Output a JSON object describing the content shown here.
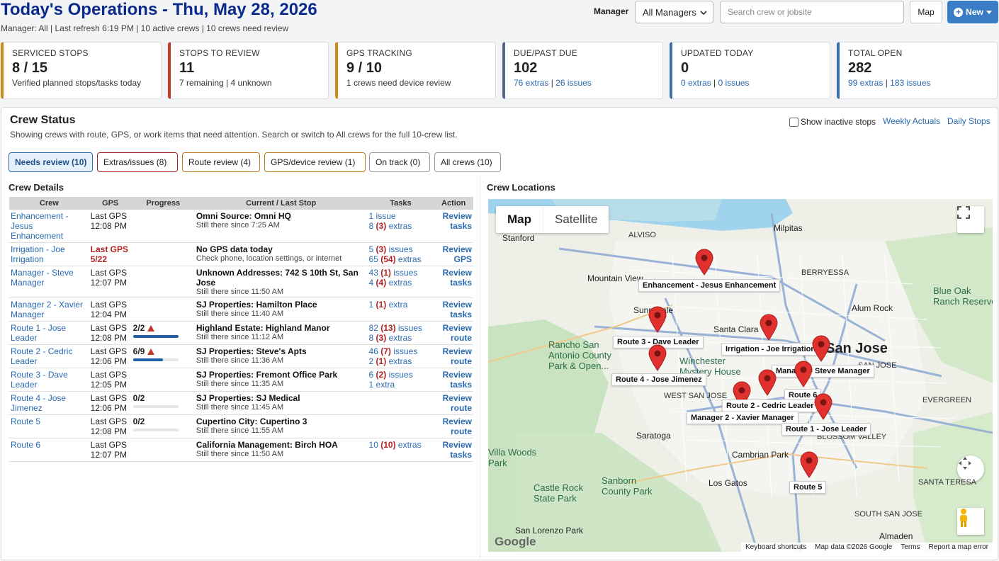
{
  "header": {
    "title": "Today's Operations - Thu, May 28, 2026",
    "subtitle": "Manager: All | Last refresh 6:19 PM | 10 active crews | 10 crews need review",
    "manager_label": "Manager",
    "manager_value": "All Managers",
    "search_placeholder": "Search crew or jobsite",
    "map_button": "Map",
    "new_button": "New"
  },
  "cards": [
    {
      "title": "SERVICED STOPS",
      "value": "8 / 15",
      "sub": "Verified planned stops/tasks today",
      "link1": "",
      "sep": "",
      "link2": "",
      "color": "#d08a1a"
    },
    {
      "title": "STOPS TO REVIEW",
      "value": "11",
      "sub": "7 remaining | 4 unknown",
      "link1": "",
      "sep": "",
      "link2": "",
      "color": "#c0392b"
    },
    {
      "title": "GPS TRACKING",
      "value": "9 / 10",
      "sub": "1 crews need device review",
      "link1": "",
      "sep": "",
      "link2": "",
      "color": "#d08a1a"
    },
    {
      "title": "DUE/PAST DUE",
      "value": "102",
      "sub": "",
      "link1": "76 extras",
      "sep": " | ",
      "link2": "26 issues",
      "color": "#556b8a"
    },
    {
      "title": "UPDATED TODAY",
      "value": "0",
      "sub": "",
      "link1": "0 extras",
      "sep": " | ",
      "link2": "0 issues",
      "color": "#3b6fb0"
    },
    {
      "title": "TOTAL OPEN",
      "value": "282",
      "sub": "",
      "link1": "99 extras",
      "sep": " | ",
      "link2": "183 issues",
      "color": "#3b6fb0"
    }
  ],
  "crew_status": {
    "title": "Crew Status",
    "subtitle": "Showing crews with route, GPS, or work items that need attention. Search or switch to All crews for the full 10-crew list.",
    "show_inactive": "Show inactive stops",
    "weekly_actuals": "Weekly Actuals",
    "daily_stops": "Daily Stops",
    "filters": [
      {
        "label": "Needs review (10)",
        "border": "#2a6ab0"
      },
      {
        "label": "Extras/issues (8)",
        "border": "#b22222"
      },
      {
        "label": "Route review (4)",
        "border": "#c07a1a"
      },
      {
        "label": "GPS/device review (1)",
        "border": "#c07a1a"
      },
      {
        "label": "On track (0)",
        "border": "#999"
      },
      {
        "label": "All crews (10)",
        "border": "#999"
      }
    ]
  },
  "crew_details": {
    "title": "Crew Details",
    "columns": [
      "Crew",
      "GPS",
      "Progress",
      "Current / Last Stop",
      "Tasks",
      "Action"
    ],
    "rows": [
      {
        "crew": "Enhancement - Jesus Enhancement",
        "gps1": "Last GPS",
        "gps2": "12:08 PM",
        "gps_warn": false,
        "progress": "",
        "prog_pct": null,
        "warn": false,
        "stop": "Omni Source: Omni HQ",
        "note": "Still there since 7:25 AM",
        "t1a": "1 issue",
        "t1n": "",
        "t1b": "",
        "t2a": "8",
        "t2n": "(3)",
        "t2b": "extras",
        "act1": "Review",
        "act2": "tasks"
      },
      {
        "crew": "Irrigation - Joe Irrigation",
        "gps1": "Last GPS",
        "gps2": "5/22",
        "gps_warn": true,
        "progress": "",
        "prog_pct": null,
        "warn": false,
        "stop": "No GPS data today",
        "note": "Check phone, location settings, or internet",
        "t1a": "5",
        "t1n": "(3)",
        "t1b": "issues",
        "t2a": "65",
        "t2n": "(54)",
        "t2b": "extras",
        "act1": "Review",
        "act2": "GPS"
      },
      {
        "crew": "Manager - Steve Manager",
        "gps1": "Last GPS",
        "gps2": "12:07 PM",
        "gps_warn": false,
        "progress": "",
        "prog_pct": null,
        "warn": false,
        "stop": "Unknown Addresses: 742 S 10th St, San Jose",
        "note": "Still there since 11:50 AM",
        "t1a": "43",
        "t1n": "(1)",
        "t1b": "issues",
        "t2a": "4",
        "t2n": "(4)",
        "t2b": "extras",
        "act1": "Review",
        "act2": "tasks"
      },
      {
        "crew": "Manager 2 - Xavier Manager",
        "gps1": "Last GPS",
        "gps2": "12:04 PM",
        "gps_warn": false,
        "progress": "",
        "prog_pct": null,
        "warn": false,
        "stop": "SJ Properties: Hamilton Place",
        "note": "Still there since 11:40 AM",
        "t1a": "1",
        "t1n": "(1)",
        "t1b": "extra",
        "t2a": "",
        "t2n": "",
        "t2b": "",
        "act1": "Review",
        "act2": "tasks"
      },
      {
        "crew": "Route 1 - Jose Leader",
        "gps1": "Last GPS",
        "gps2": "12:08 PM",
        "gps_warn": false,
        "progress": "2/2",
        "prog_pct": 1.0,
        "warn": true,
        "stop": "Highland Estate: Highland Manor",
        "note": "Still there since 11:12 AM",
        "t1a": "82",
        "t1n": "(13)",
        "t1b": "issues",
        "t2a": "8",
        "t2n": "(3)",
        "t2b": "extras",
        "act1": "Review",
        "act2": "route"
      },
      {
        "crew": "Route 2 - Cedric Leader",
        "gps1": "Last GPS",
        "gps2": "12:06 PM",
        "gps_warn": false,
        "progress": "6/9",
        "prog_pct": 0.667,
        "warn": true,
        "stop": "SJ Properties: Steve's Apts",
        "note": "Still there since 11:36 AM",
        "t1a": "46",
        "t1n": "(7)",
        "t1b": "issues",
        "t2a": "2",
        "t2n": "(1)",
        "t2b": "extras",
        "act1": "Review",
        "act2": "route"
      },
      {
        "crew": "Route 3 - Dave Leader",
        "gps1": "Last GPS",
        "gps2": "12:05 PM",
        "gps_warn": false,
        "progress": "",
        "prog_pct": null,
        "warn": false,
        "stop": "SJ Properties: Fremont Office Park",
        "note": "Still there since 11:35 AM",
        "t1a": "6",
        "t1n": "(2)",
        "t1b": "issues",
        "t2a": "1 extra",
        "t2n": "",
        "t2b": "",
        "act1": "Review",
        "act2": "tasks"
      },
      {
        "crew": "Route 4 - Jose Jimenez",
        "gps1": "Last GPS",
        "gps2": "12:06 PM",
        "gps_warn": false,
        "progress": "0/2",
        "prog_pct": 0.0,
        "warn": false,
        "stop": "SJ Properties: SJ Medical",
        "note": "Still there since 11:45 AM",
        "t1a": "",
        "t1n": "",
        "t1b": "",
        "t2a": "",
        "t2n": "",
        "t2b": "",
        "act1": "Review",
        "act2": "route"
      },
      {
        "crew": "Route 5",
        "gps1": "Last GPS",
        "gps2": "12:08 PM",
        "gps_warn": false,
        "progress": "0/2",
        "prog_pct": 0.0,
        "warn": false,
        "stop": "Cupertino City: Cupertino 3",
        "note": "Still there since 11:55 AM",
        "t1a": "",
        "t1n": "",
        "t1b": "",
        "t2a": "",
        "t2n": "",
        "t2b": "",
        "act1": "Review",
        "act2": "route"
      },
      {
        "crew": "Route 6",
        "gps1": "Last GPS",
        "gps2": "12:07 PM",
        "gps_warn": false,
        "progress": "",
        "prog_pct": null,
        "warn": false,
        "stop": "California Management: Birch HOA",
        "note": "Still there since 11:50 AM",
        "t1a": "10",
        "t1n": "(10)",
        "t1b": "extras",
        "t2a": "",
        "t2n": "",
        "t2b": "",
        "act1": "Review",
        "act2": "tasks"
      }
    ]
  },
  "map": {
    "title": "Crew Locations",
    "tab_map": "Map",
    "tab_satellite": "Satellite",
    "google": "Google",
    "footer": [
      "Keyboard shortcuts",
      "Map data ©2026 Google",
      "Terms",
      "Report a map error"
    ],
    "places": [
      "Stanford",
      "ALVISO",
      "Milpitas",
      "Mountain View",
      "BERRYESSA",
      "Sunnyvale",
      "Santa Clara",
      "Alum Rock",
      "Blue Oak Ranch Reserve",
      "Rancho San Antonio County Park & Open...",
      "Winchester Mystery House",
      "WEST SAN JOSE",
      "SAN JOSE",
      "EVERGREEN",
      "Saratoga",
      "Cambrian Park",
      "BLOSSOM VALLEY",
      "Sanborn County Park",
      "Los Gatos",
      "SANTA TERESA",
      "Castle Rock State Park",
      "SOUTH SAN JOSE",
      "San Lorenzo Park",
      "Almaden",
      "Villa Woods Park",
      "San Jose"
    ],
    "pins": [
      {
        "label": "Enhancement - Jesus Enhancement"
      },
      {
        "label": "Route 3 - Dave Leader"
      },
      {
        "label": "Irrigation - Joe Irrigation"
      },
      {
        "label": "Route 4 - Jose Jimenez"
      },
      {
        "label": "Manager - Steve Manager"
      },
      {
        "label": "Route 6"
      },
      {
        "label": "Route 2 - Cedric Leader"
      },
      {
        "label": "Manager 2 - Xavier Manager"
      },
      {
        "label": "Route 1 - Jose Leader"
      },
      {
        "label": "Route 5"
      }
    ]
  }
}
